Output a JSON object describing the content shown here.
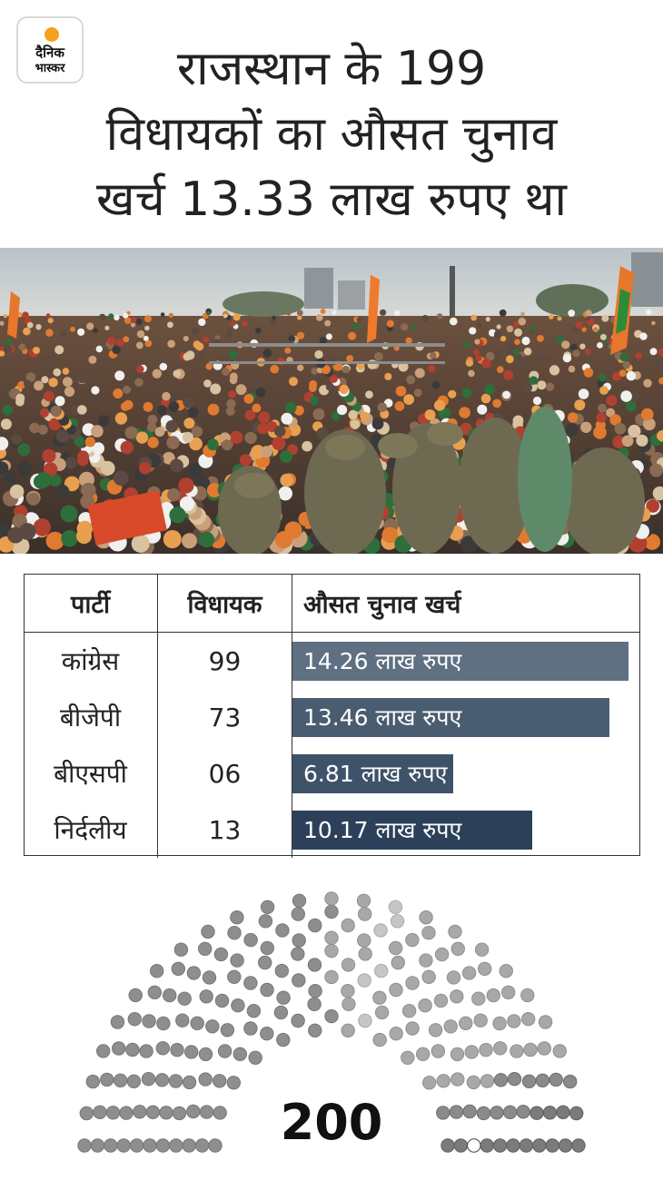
{
  "logo": {
    "line1": "दैनिक",
    "line2": "भास्कर"
  },
  "headline": {
    "line1": "राजस्थान के 199",
    "line2": "विधायकों का औसत चुनाव",
    "line3": "खर्च 13.33 लाख रुपए था"
  },
  "chart_data": {
    "type": "table",
    "columns": [
      "पार्टी",
      "विधायक",
      "औसत चुनाव खर्च"
    ],
    "rows": [
      {
        "party": "कांग्रेस",
        "mlas": "99",
        "expense_label": "14.26 लाख रुपए",
        "expense": 14.26,
        "color": "#5e7082"
      },
      {
        "party": "बीजेपी",
        "mlas": "73",
        "expense_label": "13.46 लाख रुपए",
        "expense": 13.46,
        "color": "#4a5d70"
      },
      {
        "party": "बीएसपी",
        "mlas": "06",
        "expense_label": "6.81 लाख रुपए",
        "expense": 6.81,
        "color": "#3e536a"
      },
      {
        "party": "निर्दलीय",
        "mlas": "13",
        "expense_label": "10.17 लाख रुपए",
        "expense": 10.17,
        "color": "#2c4159"
      }
    ],
    "seats_total": "200"
  }
}
